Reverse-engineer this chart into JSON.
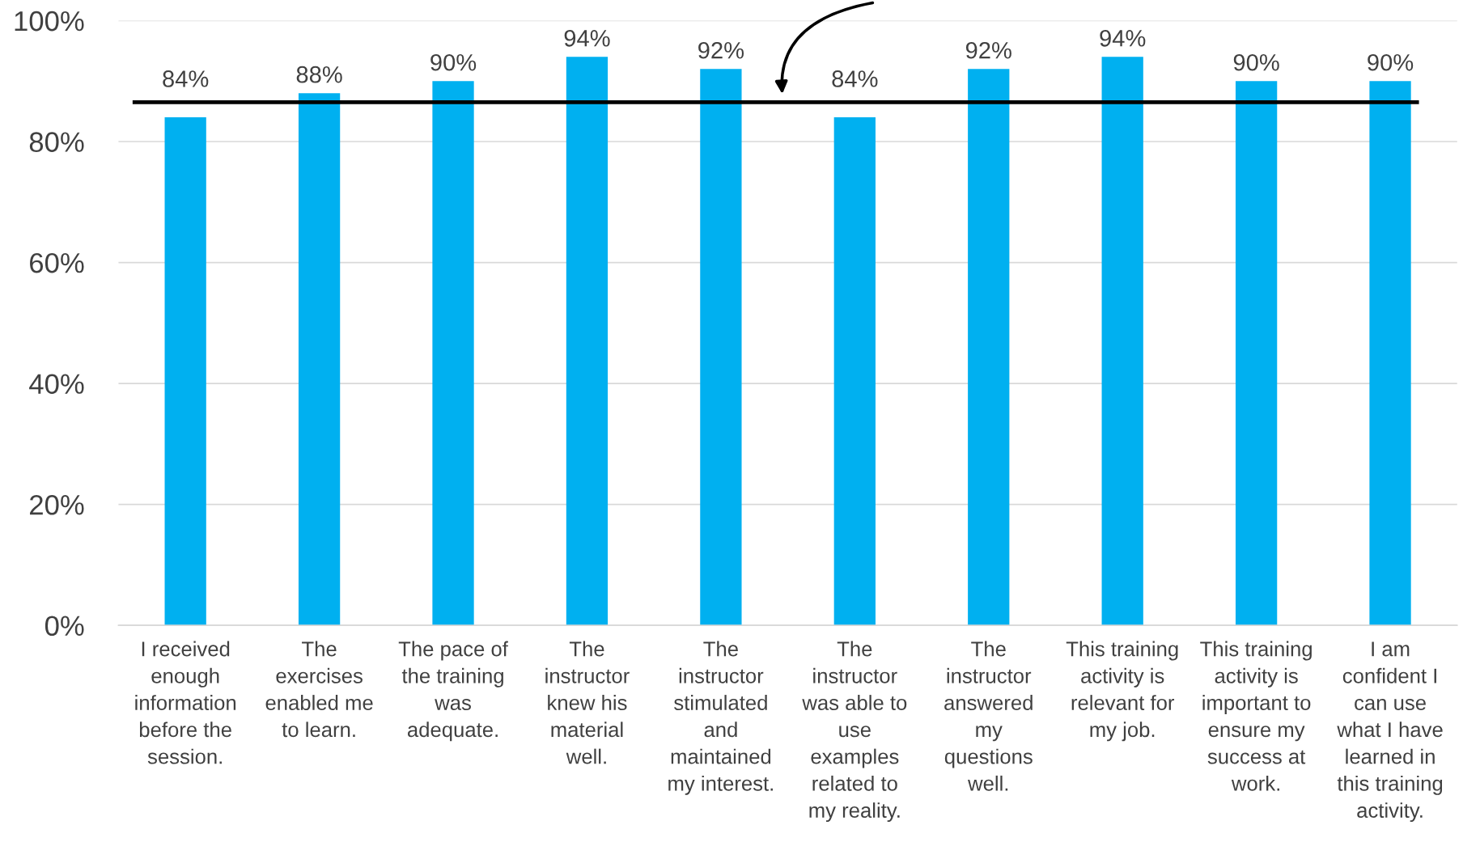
{
  "chart_data": {
    "type": "bar",
    "categories": [
      "I received\nenough\ninformation\nbefore the\nsession.",
      "The\nexercises\nenabled me\nto learn.",
      "The pace of\nthe training\nwas\nadequate.",
      "The\ninstructor\nknew his\nmaterial\nwell.",
      "The\ninstructor\nstimulated\nand\nmaintained\nmy interest.",
      "The\ninstructor\nwas able to\nuse\nexamples\nrelated to\nmy reality.",
      "The\ninstructor\nanswered\nmy\nquestions\nwell.",
      "This training\nactivity is\nrelevant for\nmy job.",
      "This training\nactivity is\nimportant to\nensure my\nsuccess at\nwork.",
      "I am\nconfident I\ncan use\nwhat I have\nlearned in\nthis training\nactivity."
    ],
    "values": [
      84,
      88,
      90,
      94,
      92,
      84,
      92,
      94,
      90,
      90
    ],
    "value_labels": [
      "84%",
      "88%",
      "90%",
      "94%",
      "92%",
      "84%",
      "92%",
      "94%",
      "90%",
      "90%"
    ],
    "color": "#00b0f0",
    "ylim": [
      0,
      100
    ],
    "yticks": [
      {
        "value": 0,
        "label": "0%"
      },
      {
        "value": 20,
        "label": "20%"
      },
      {
        "value": 40,
        "label": "40%"
      },
      {
        "value": 60,
        "label": "60%"
      },
      {
        "value": 80,
        "label": "80%"
      },
      {
        "value": 100,
        "label": "100%"
      }
    ],
    "grid": "y",
    "ref_lines": [
      {
        "axis": "y",
        "value": 86.5,
        "color": "#000000"
      }
    ]
  }
}
